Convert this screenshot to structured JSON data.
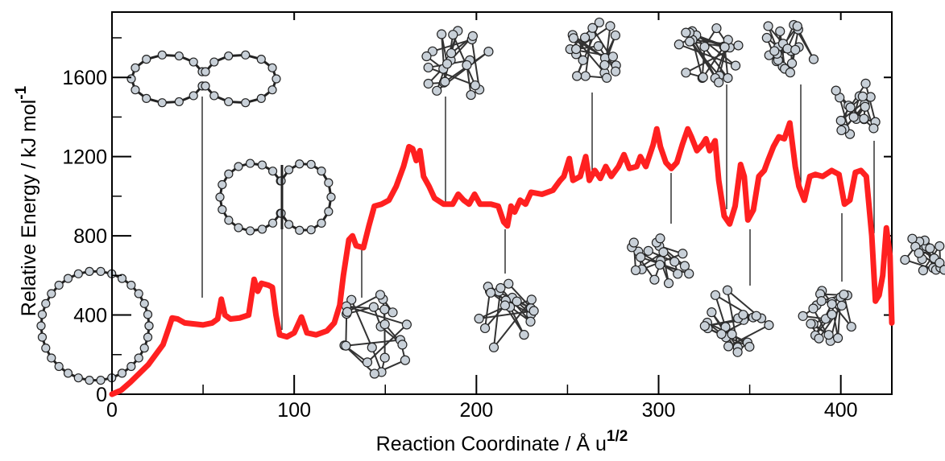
{
  "chart_data": {
    "type": "line",
    "xlabel": "Reaction Coordinate / Å  u",
    "xlabel_sup": "1/2",
    "ylabel": "Relative Energy / kJ mol",
    "ylabel_sup": "-1",
    "xlim": [
      0,
      428
    ],
    "ylim": [
      0,
      1930
    ],
    "xticks": [
      0,
      100,
      200,
      300,
      400
    ],
    "xticks_minor": [
      50,
      150,
      250,
      350
    ],
    "yticks": [
      0,
      400,
      800,
      1200,
      1600
    ],
    "yticks_minor": [
      200,
      600,
      1000,
      1400,
      1800
    ],
    "series": [
      {
        "color": "#ff2020",
        "x": [
          0,
          5,
          10,
          20,
          28,
          31,
          33,
          36,
          40,
          50,
          55,
          58,
          60,
          62,
          65,
          70,
          75,
          78,
          80,
          82,
          86,
          88,
          90,
          92,
          96,
          100,
          104,
          107,
          112,
          118,
          122,
          125,
          127,
          130,
          132,
          134,
          138,
          141,
          144,
          148,
          152,
          156,
          160,
          163,
          165,
          167,
          169,
          171,
          174,
          177,
          182,
          187,
          190,
          193,
          196,
          199,
          202,
          208,
          212,
          215,
          217,
          219,
          221,
          224,
          227,
          230,
          236,
          242,
          246,
          248,
          251,
          253,
          257,
          260,
          262,
          265,
          268,
          271,
          274,
          278,
          281,
          284,
          288,
          290,
          293,
          297,
          299,
          301,
          304,
          307,
          310,
          313,
          316,
          318,
          321,
          324,
          326,
          328,
          331,
          333,
          336,
          339,
          342,
          345,
          347,
          349,
          352,
          355,
          358,
          360,
          363,
          366,
          369,
          372,
          375,
          377,
          380,
          383,
          386,
          390,
          395,
          399,
          402,
          405,
          408,
          411,
          414,
          417,
          419,
          421,
          423,
          425,
          427,
          428
        ],
        "values": [
          0,
          20,
          60,
          150,
          250,
          330,
          385,
          380,
          360,
          350,
          360,
          380,
          480,
          400,
          380,
          385,
          400,
          580,
          520,
          560,
          550,
          540,
          400,
          300,
          290,
          310,
          390,
          310,
          300,
          320,
          360,
          450,
          600,
          780,
          800,
          750,
          740,
          850,
          950,
          960,
          980,
          1050,
          1150,
          1250,
          1240,
          1180,
          1230,
          1100,
          1050,
          990,
          960,
          960,
          1010,
          980,
          960,
          1010,
          960,
          960,
          950,
          870,
          850,
          950,
          920,
          980,
          960,
          1020,
          1010,
          1030,
          1080,
          1100,
          1190,
          1080,
          1100,
          1200,
          1080,
          1130,
          1090,
          1150,
          1100,
          1150,
          1210,
          1140,
          1150,
          1200,
          1150,
          1260,
          1340,
          1250,
          1170,
          1140,
          1170,
          1260,
          1340,
          1300,
          1230,
          1260,
          1290,
          1230,
          1280,
          1080,
          900,
          860,
          950,
          1160,
          1100,
          880,
          930,
          1100,
          1130,
          1180,
          1250,
          1300,
          1290,
          1370,
          1150,
          1050,
          980,
          1100,
          1110,
          1100,
          1130,
          1110,
          960,
          980,
          1120,
          1130,
          1100,
          800,
          470,
          500,
          600,
          840,
          700,
          360
        ]
      }
    ]
  }
}
